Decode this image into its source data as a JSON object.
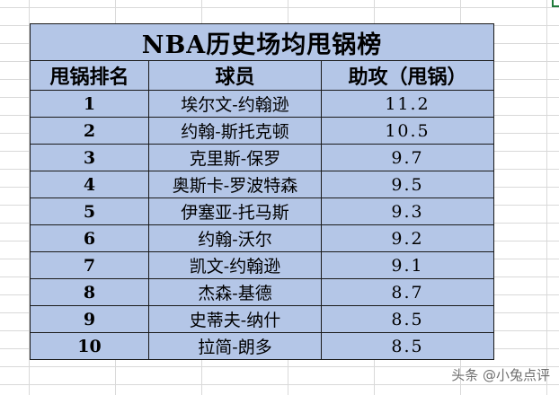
{
  "table": {
    "title": "NBA历史场均甩锅榜",
    "headers": {
      "rank": "甩锅排名",
      "player": "球员",
      "assists": "助攻（甩锅）"
    },
    "rows": [
      {
        "rank": "1",
        "player": "埃尔文-约翰逊",
        "assists": "11.2"
      },
      {
        "rank": "2",
        "player": "约翰-斯托克顿",
        "assists": "10.5"
      },
      {
        "rank": "3",
        "player": "克里斯-保罗",
        "assists": "9.7"
      },
      {
        "rank": "4",
        "player": "奥斯卡-罗波特森",
        "assists": "9.5"
      },
      {
        "rank": "5",
        "player": "伊塞亚-托马斯",
        "assists": "9.3"
      },
      {
        "rank": "6",
        "player": "约翰-沃尔",
        "assists": "9.2"
      },
      {
        "rank": "7",
        "player": "凯文-约翰逊",
        "assists": "9.1"
      },
      {
        "rank": "8",
        "player": "杰森-基德",
        "assists": "8.7"
      },
      {
        "rank": "9",
        "player": "史蒂夫-纳什",
        "assists": "8.5"
      },
      {
        "rank": "10",
        "player": "拉简-朗多",
        "assists": "8.5"
      }
    ]
  },
  "watermark": {
    "text": "头条 @小兔点评"
  },
  "colors": {
    "table_fill": "#b4c6e7",
    "border": "#1a1a1a",
    "gridline": "#d9d9d9"
  }
}
